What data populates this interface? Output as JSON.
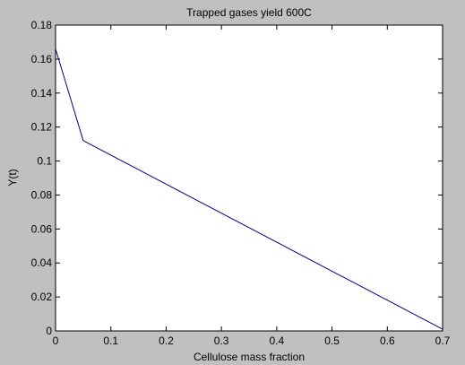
{
  "figure": {
    "background_color": "#c0c0c0",
    "plot_background_color": "#ffffff"
  },
  "chart_data": {
    "type": "line",
    "title": "Trapped gases yield 600C",
    "xlabel": "Cellulose mass fraction",
    "ylabel": "Y(t)",
    "xlim": [
      0,
      0.7
    ],
    "ylim": [
      0,
      0.18
    ],
    "xticks": [
      "0",
      "0.1",
      "0.2",
      "0.3",
      "0.4",
      "0.5",
      "0.6",
      "0.7"
    ],
    "yticks": [
      "0",
      "0.02",
      "0.04",
      "0.06",
      "0.08",
      "0.1",
      "0.12",
      "0.14",
      "0.16",
      "0.18"
    ],
    "grid": false,
    "series": [
      {
        "color": "#000080",
        "x": [
          0,
          0.05,
          0.7
        ],
        "y": [
          0.166,
          0.112,
          0.001
        ]
      }
    ]
  }
}
